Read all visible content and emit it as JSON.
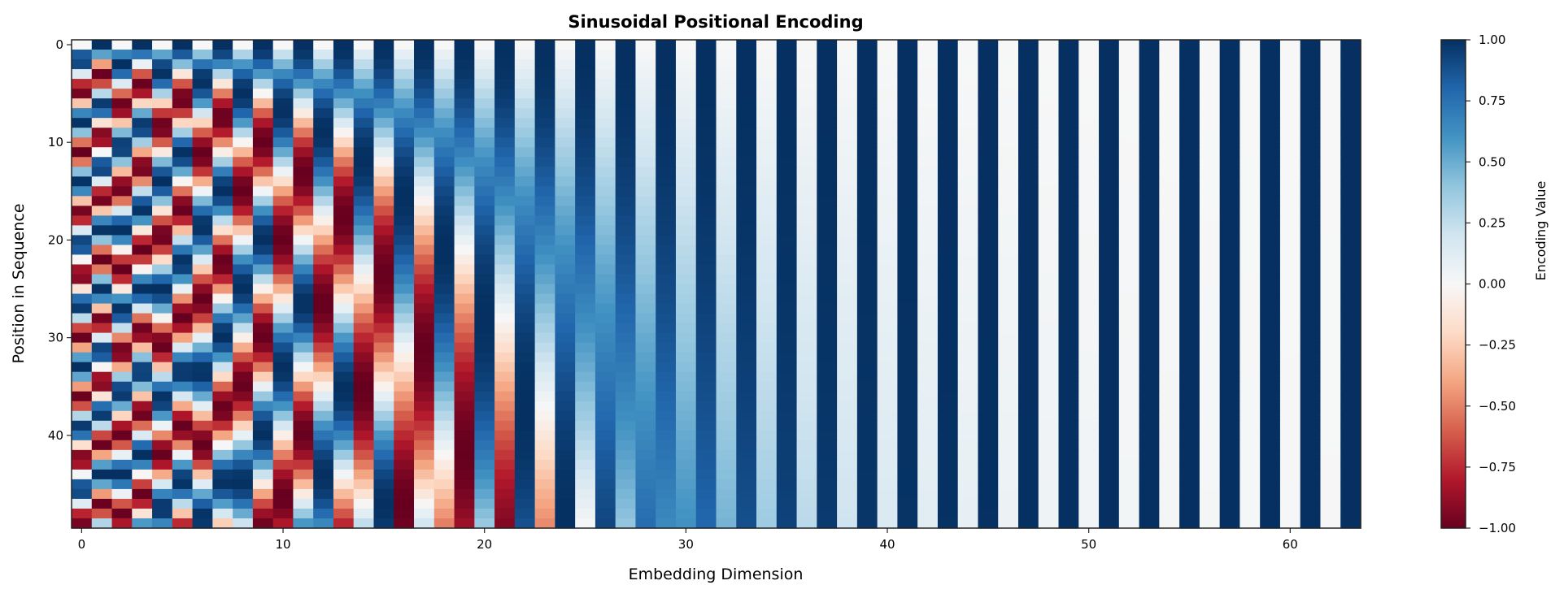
{
  "chart_data": {
    "type": "heatmap",
    "title": "Sinusoidal Positional Encoding",
    "xlabel": "Embedding Dimension",
    "ylabel": "Position in Sequence",
    "colorbar_label": "Encoding Value",
    "colormap": "RdBu",
    "colormap_stops": [
      "#67001f",
      "#b2182b",
      "#d6604d",
      "#f4a582",
      "#fddbc7",
      "#f7f7f7",
      "#d1e5f0",
      "#92c5de",
      "#4393c3",
      "#2166ac",
      "#053061"
    ],
    "value_range": [
      -1,
      1
    ],
    "n_positions": 50,
    "n_dimensions": 64,
    "encoding": {
      "even_dims": "sin(pos / 10000^(2i/64))",
      "odd_dims": "cos(pos / 10000^(2i/64))",
      "base": 10000
    },
    "xticks": [
      "0",
      "10",
      "20",
      "30",
      "40",
      "50",
      "60"
    ],
    "yticks": [
      "0",
      "10",
      "20",
      "30",
      "40"
    ],
    "colorbar_ticks": [
      "1.00",
      "0.75",
      "0.50",
      "0.25",
      "0.00",
      "−0.25",
      "−0.50",
      "−0.75",
      "−1.00"
    ],
    "grid": false
  }
}
